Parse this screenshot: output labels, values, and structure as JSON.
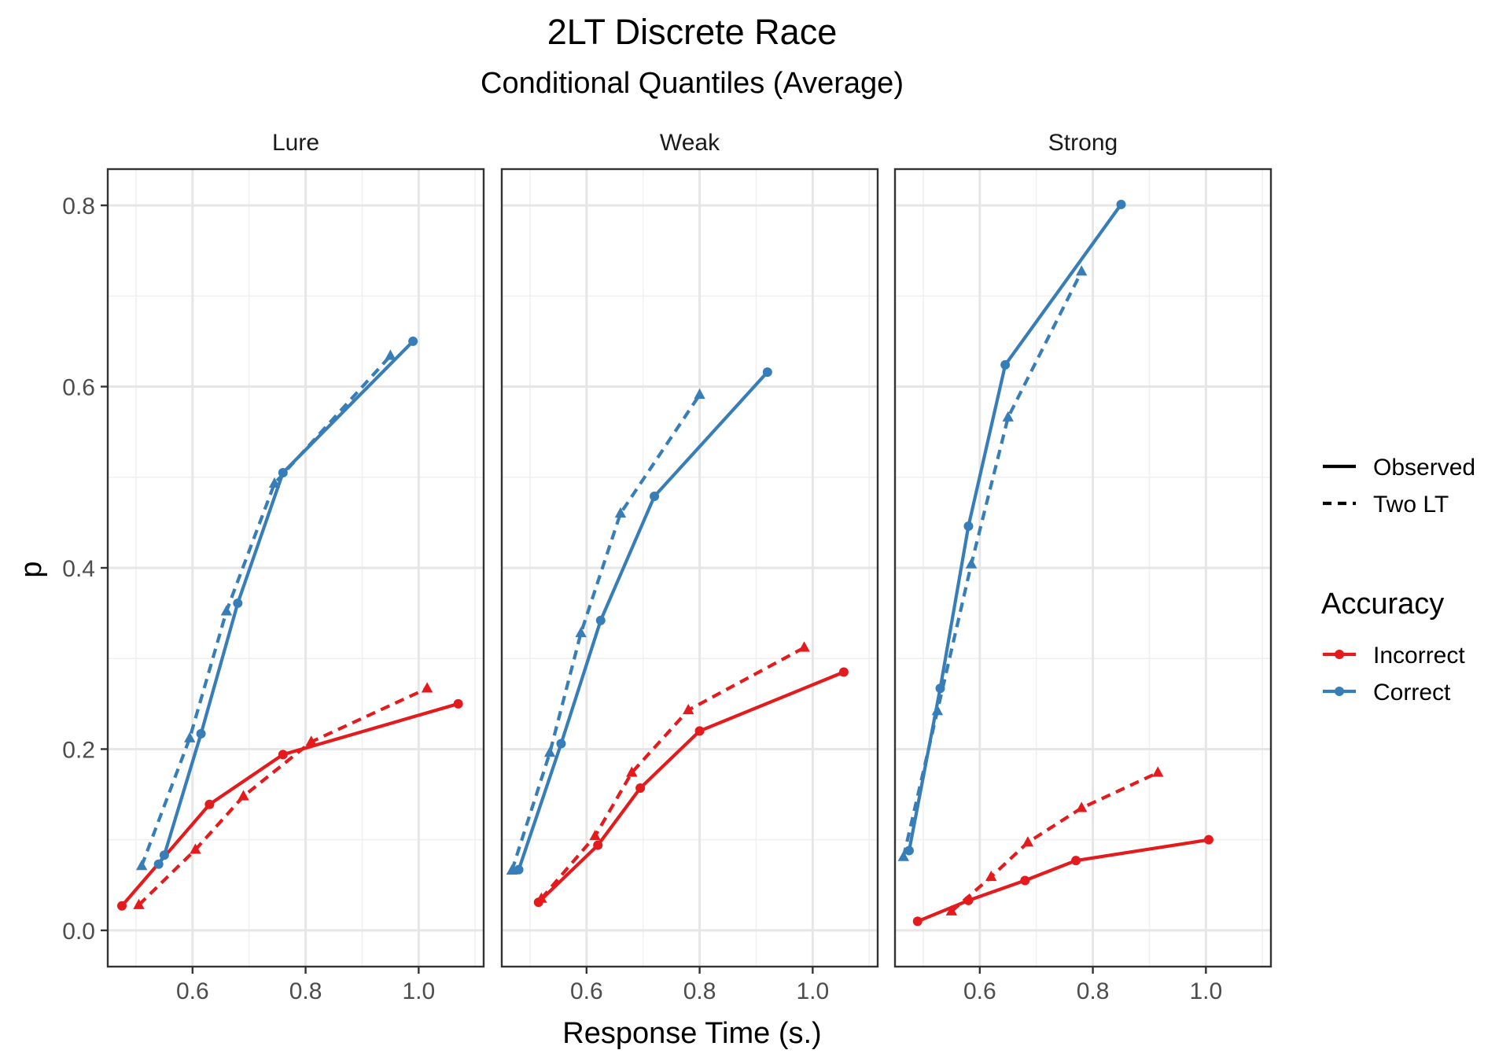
{
  "chart_data": {
    "type": "line",
    "title": "2LT Discrete Race",
    "subtitle": "Conditional Quantiles (Average)",
    "xlabel": "Response Time (s.)",
    "ylabel": "p",
    "xlim": [
      0.45,
      1.115
    ],
    "ylim": [
      -0.04,
      0.84
    ],
    "x_ticks": [
      0.6,
      0.8,
      1.0
    ],
    "x_tick_labels": [
      "0.6",
      "0.8",
      "1.0"
    ],
    "y_ticks": [
      0.0,
      0.2,
      0.4,
      0.6,
      0.8
    ],
    "y_tick_labels": [
      "0.0",
      "0.2",
      "0.4",
      "0.6",
      "0.8"
    ],
    "grid": true,
    "legend_position": "right",
    "linetype_legend": {
      "entries": [
        {
          "label": "Observed",
          "style": "solid"
        },
        {
          "label": "Two LT",
          "style": "dashed"
        }
      ]
    },
    "color_legend": {
      "title": "Accuracy",
      "entries": [
        {
          "label": "Incorrect",
          "color": "#E41A1C"
        },
        {
          "label": "Correct",
          "color": "#377EB8"
        }
      ]
    },
    "panels": [
      {
        "label": "Lure",
        "series": [
          {
            "accuracy": "Correct",
            "type": "Observed",
            "points": [
              [
                0.54,
                0.073
              ],
              [
                0.55,
                0.083
              ],
              [
                0.615,
                0.217
              ],
              [
                0.68,
                0.361
              ],
              [
                0.76,
                0.505
              ],
              [
                0.99,
                0.65
              ]
            ]
          },
          {
            "accuracy": "Correct",
            "type": "Two LT",
            "points": [
              [
                0.51,
                0.071
              ],
              [
                0.595,
                0.212
              ],
              [
                0.66,
                0.352
              ],
              [
                0.745,
                0.493
              ],
              [
                0.95,
                0.634
              ]
            ]
          },
          {
            "accuracy": "Incorrect",
            "type": "Observed",
            "points": [
              [
                0.475,
                0.027
              ],
              [
                0.63,
                0.139
              ],
              [
                0.76,
                0.194
              ],
              [
                1.07,
                0.25
              ]
            ]
          },
          {
            "accuracy": "Incorrect",
            "type": "Two LT",
            "points": [
              [
                0.505,
                0.028
              ],
              [
                0.605,
                0.089
              ],
              [
                0.69,
                0.148
              ],
              [
                0.81,
                0.208
              ],
              [
                1.015,
                0.267
              ]
            ]
          }
        ]
      },
      {
        "label": "Weak",
        "series": [
          {
            "accuracy": "Correct",
            "type": "Observed",
            "points": [
              [
                0.48,
                0.067
              ],
              [
                0.555,
                0.206
              ],
              [
                0.625,
                0.342
              ],
              [
                0.72,
                0.479
              ],
              [
                0.92,
                0.616
              ]
            ]
          },
          {
            "accuracy": "Correct",
            "type": "Two LT",
            "points": [
              [
                0.468,
                0.066
              ],
              [
                0.535,
                0.196
              ],
              [
                0.59,
                0.328
              ],
              [
                0.66,
                0.46
              ],
              [
                0.8,
                0.591
              ]
            ]
          },
          {
            "accuracy": "Incorrect",
            "type": "Observed",
            "points": [
              [
                0.515,
                0.031
              ],
              [
                0.62,
                0.094
              ],
              [
                0.695,
                0.157
              ],
              [
                0.8,
                0.22
              ],
              [
                1.055,
                0.285
              ]
            ]
          },
          {
            "accuracy": "Incorrect",
            "type": "Two LT",
            "points": [
              [
                0.52,
                0.035
              ],
              [
                0.615,
                0.104
              ],
              [
                0.68,
                0.174
              ],
              [
                0.78,
                0.243
              ],
              [
                0.985,
                0.312
              ]
            ]
          }
        ]
      },
      {
        "label": "Strong",
        "series": [
          {
            "accuracy": "Correct",
            "type": "Observed",
            "points": [
              [
                0.475,
                0.088
              ],
              [
                0.53,
                0.267
              ],
              [
                0.58,
                0.446
              ],
              [
                0.645,
                0.624
              ],
              [
                0.85,
                0.801
              ]
            ]
          },
          {
            "accuracy": "Correct",
            "type": "Two LT",
            "points": [
              [
                0.465,
                0.081
              ],
              [
                0.525,
                0.242
              ],
              [
                0.585,
                0.404
              ],
              [
                0.65,
                0.566
              ],
              [
                0.78,
                0.727
              ]
            ]
          },
          {
            "accuracy": "Incorrect",
            "type": "Observed",
            "points": [
              [
                0.49,
                0.01
              ],
              [
                0.58,
                0.033
              ],
              [
                0.68,
                0.055
              ],
              [
                0.77,
                0.077
              ],
              [
                1.005,
                0.1
              ]
            ]
          },
          {
            "accuracy": "Incorrect",
            "type": "Two LT",
            "points": [
              [
                0.55,
                0.021
              ],
              [
                0.62,
                0.059
              ],
              [
                0.685,
                0.097
              ],
              [
                0.78,
                0.135
              ],
              [
                0.915,
                0.174
              ]
            ]
          }
        ]
      }
    ]
  }
}
